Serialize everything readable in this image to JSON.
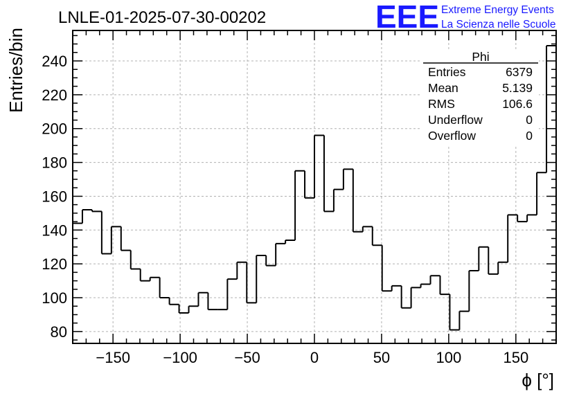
{
  "chart_data": {
    "type": "bar",
    "title": "LNLE-01-2025-07-30-00202",
    "xlabel": "ϕ [°]",
    "ylabel": "Entries/bin",
    "xlim": [
      -180,
      180
    ],
    "ylim": [
      73,
      258
    ],
    "grid": true,
    "bin_edges_start": -180,
    "bin_width": 7.2,
    "values": [
      144,
      152,
      151,
      126,
      142,
      128,
      117,
      110,
      112,
      100,
      96,
      91,
      95,
      103,
      93,
      93,
      111,
      121,
      97,
      125,
      119,
      132,
      134,
      175,
      159,
      196,
      151,
      164,
      176,
      139,
      142,
      131,
      104,
      107,
      94,
      106,
      108,
      113,
      102,
      81,
      92,
      116,
      130,
      114,
      121,
      149,
      145,
      149,
      174,
      249
    ],
    "x_ticks": [
      -150,
      -100,
      -50,
      0,
      50,
      100,
      150
    ],
    "y_ticks": [
      80,
      100,
      120,
      140,
      160,
      180,
      200,
      220,
      240
    ],
    "stats": {
      "name": "Phi",
      "rows": [
        {
          "label": "Entries",
          "value": "6379"
        },
        {
          "label": "Mean",
          "value": "5.139"
        },
        {
          "label": "RMS",
          "value": "106.6"
        },
        {
          "label": "Underflow",
          "value": "0"
        },
        {
          "label": "Overflow",
          "value": "0"
        }
      ]
    }
  },
  "logo": {
    "mark": "EEE",
    "line1": "Extreme Energy Events",
    "line2": "La Scienza nelle Scuole",
    "color": "#1a1aff"
  }
}
